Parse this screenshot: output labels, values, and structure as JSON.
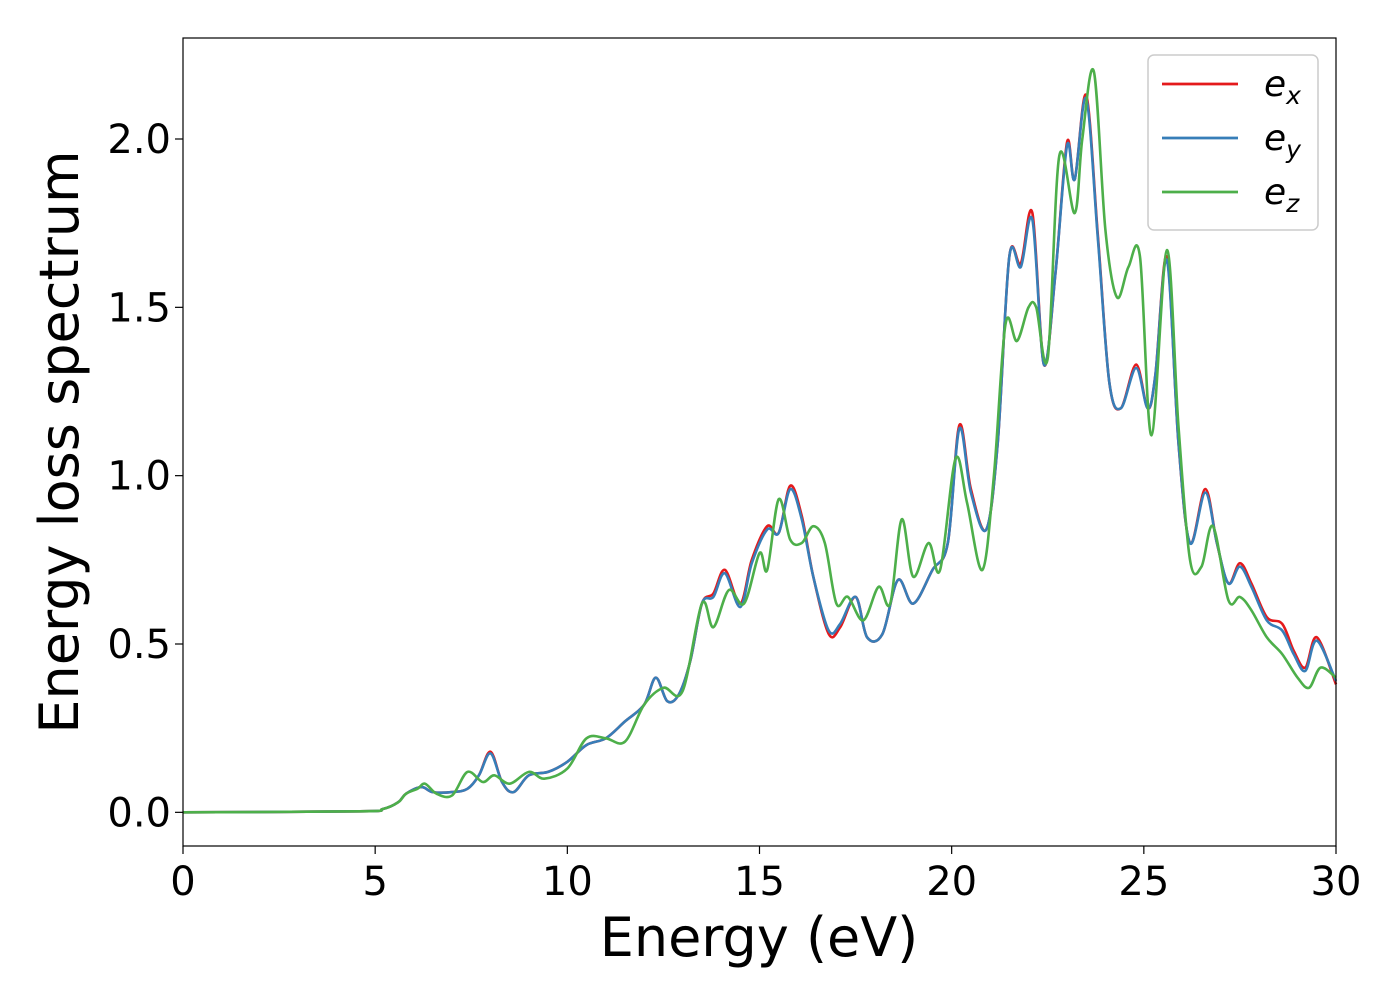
{
  "chart_data": {
    "type": "line",
    "title": "",
    "xlabel": "Energy (eV)",
    "ylabel": "Energy loss spectrum",
    "xlim": [
      0,
      30
    ],
    "ylim": [
      -0.1,
      2.3
    ],
    "xticks": [
      0,
      5,
      10,
      15,
      20,
      25,
      30
    ],
    "xtick_labels": [
      "0",
      "5",
      "10",
      "15",
      "20",
      "25",
      "30"
    ],
    "yticks": [
      0,
      0.5,
      1,
      1.5,
      2
    ],
    "ytick_labels": [
      "0.0",
      "0.5",
      "1.0",
      "1.5",
      "2.0"
    ],
    "grid": false,
    "legend_position": "top-right",
    "series": [
      {
        "legend_base": "e",
        "legend_sub": "x",
        "color": "#e41a1c",
        "x": [
          0,
          4.6,
          5.2,
          5.6,
          5.8,
          6.2,
          6.5,
          7.0,
          7.4,
          7.7,
          8.0,
          8.3,
          8.6,
          9.0,
          9.5,
          10.0,
          10.5,
          11.0,
          11.5,
          12.0,
          12.3,
          12.6,
          12.9,
          13.2,
          13.5,
          13.8,
          14.1,
          14.5,
          14.8,
          15.2,
          15.5,
          15.8,
          16.1,
          16.4,
          16.8,
          17.1,
          17.5,
          17.8,
          18.2,
          18.6,
          19.0,
          19.5,
          19.9,
          20.2,
          20.5,
          20.9,
          21.2,
          21.5,
          21.8,
          22.1,
          22.4,
          22.7,
          23.0,
          23.2,
          23.5,
          23.8,
          24.1,
          24.4,
          24.8,
          25.1,
          25.3,
          25.6,
          25.9,
          26.2,
          26.6,
          26.9,
          27.2,
          27.5,
          27.8,
          28.2,
          28.6,
          28.9,
          29.2,
          29.5,
          30.0
        ],
        "y": [
          0,
          0.003,
          0.01,
          0.03,
          0.055,
          0.075,
          0.06,
          0.06,
          0.07,
          0.11,
          0.18,
          0.09,
          0.06,
          0.11,
          0.12,
          0.15,
          0.2,
          0.22,
          0.27,
          0.32,
          0.4,
          0.33,
          0.35,
          0.45,
          0.62,
          0.65,
          0.72,
          0.62,
          0.75,
          0.85,
          0.83,
          0.97,
          0.88,
          0.7,
          0.53,
          0.55,
          0.64,
          0.52,
          0.53,
          0.69,
          0.62,
          0.72,
          0.8,
          1.15,
          0.96,
          0.84,
          1.1,
          1.65,
          1.63,
          1.78,
          1.33,
          1.6,
          1.99,
          1.88,
          2.13,
          1.72,
          1.28,
          1.2,
          1.33,
          1.2,
          1.3,
          1.65,
          1.1,
          0.8,
          0.96,
          0.8,
          0.68,
          0.74,
          0.68,
          0.58,
          0.56,
          0.48,
          0.43,
          0.52,
          0.38
        ]
      },
      {
        "legend_base": "e",
        "legend_sub": "y",
        "color": "#377eb8",
        "x": [
          0,
          4.6,
          5.2,
          5.6,
          5.8,
          6.2,
          6.5,
          7.0,
          7.4,
          7.7,
          8.0,
          8.3,
          8.6,
          9.0,
          9.5,
          10.0,
          10.5,
          11.0,
          11.5,
          12.0,
          12.3,
          12.6,
          12.9,
          13.2,
          13.5,
          13.8,
          14.1,
          14.5,
          14.8,
          15.2,
          15.5,
          15.8,
          16.1,
          16.4,
          16.8,
          17.1,
          17.5,
          17.8,
          18.2,
          18.6,
          19.0,
          19.5,
          19.9,
          20.2,
          20.5,
          20.9,
          21.2,
          21.5,
          21.8,
          22.1,
          22.4,
          22.7,
          23.0,
          23.2,
          23.5,
          23.8,
          24.1,
          24.4,
          24.8,
          25.1,
          25.3,
          25.6,
          25.9,
          26.2,
          26.6,
          26.9,
          27.2,
          27.5,
          27.8,
          28.2,
          28.6,
          28.9,
          29.2,
          29.5,
          30.0
        ],
        "y": [
          0,
          0.003,
          0.01,
          0.03,
          0.055,
          0.075,
          0.06,
          0.06,
          0.07,
          0.11,
          0.175,
          0.09,
          0.06,
          0.11,
          0.12,
          0.15,
          0.2,
          0.22,
          0.27,
          0.32,
          0.4,
          0.33,
          0.35,
          0.45,
          0.62,
          0.64,
          0.71,
          0.61,
          0.74,
          0.84,
          0.83,
          0.96,
          0.87,
          0.7,
          0.54,
          0.56,
          0.64,
          0.52,
          0.53,
          0.69,
          0.62,
          0.72,
          0.8,
          1.14,
          0.95,
          0.84,
          1.1,
          1.65,
          1.62,
          1.76,
          1.33,
          1.6,
          1.98,
          1.88,
          2.12,
          1.71,
          1.28,
          1.2,
          1.32,
          1.2,
          1.3,
          1.64,
          1.1,
          0.8,
          0.95,
          0.8,
          0.68,
          0.73,
          0.67,
          0.57,
          0.54,
          0.47,
          0.42,
          0.51,
          0.39
        ]
      },
      {
        "legend_base": "e",
        "legend_sub": "z",
        "color": "#4daf4a",
        "x": [
          0,
          4.6,
          5.2,
          5.6,
          5.8,
          6.1,
          6.3,
          6.6,
          7.0,
          7.4,
          7.8,
          8.1,
          8.5,
          9.0,
          9.4,
          10.0,
          10.5,
          11.0,
          11.5,
          12.0,
          12.5,
          13.0,
          13.5,
          13.8,
          14.2,
          14.6,
          15.0,
          15.2,
          15.5,
          15.8,
          16.1,
          16.4,
          16.7,
          17.0,
          17.3,
          17.7,
          18.1,
          18.4,
          18.7,
          19.0,
          19.4,
          19.7,
          20.1,
          20.4,
          20.8,
          21.1,
          21.4,
          21.7,
          22.0,
          22.2,
          22.5,
          22.8,
          23.2,
          23.4,
          23.7,
          24.0,
          24.3,
          24.6,
          24.9,
          25.2,
          25.6,
          25.9,
          26.2,
          26.5,
          26.8,
          27.2,
          27.5,
          27.8,
          28.2,
          28.6,
          29.0,
          29.3,
          29.6,
          30.0
        ],
        "y": [
          0,
          0.003,
          0.01,
          0.03,
          0.055,
          0.07,
          0.085,
          0.055,
          0.05,
          0.12,
          0.09,
          0.11,
          0.085,
          0.12,
          0.1,
          0.13,
          0.22,
          0.22,
          0.21,
          0.32,
          0.37,
          0.36,
          0.62,
          0.55,
          0.66,
          0.62,
          0.77,
          0.72,
          0.93,
          0.81,
          0.8,
          0.85,
          0.8,
          0.62,
          0.64,
          0.57,
          0.67,
          0.62,
          0.87,
          0.7,
          0.8,
          0.72,
          1.05,
          0.92,
          0.72,
          1.0,
          1.45,
          1.4,
          1.5,
          1.5,
          1.35,
          1.95,
          1.78,
          2.0,
          2.2,
          1.73,
          1.53,
          1.62,
          1.65,
          1.12,
          1.67,
          1.15,
          0.75,
          0.73,
          0.85,
          0.63,
          0.64,
          0.6,
          0.52,
          0.47,
          0.4,
          0.37,
          0.43,
          0.4
        ]
      }
    ]
  }
}
